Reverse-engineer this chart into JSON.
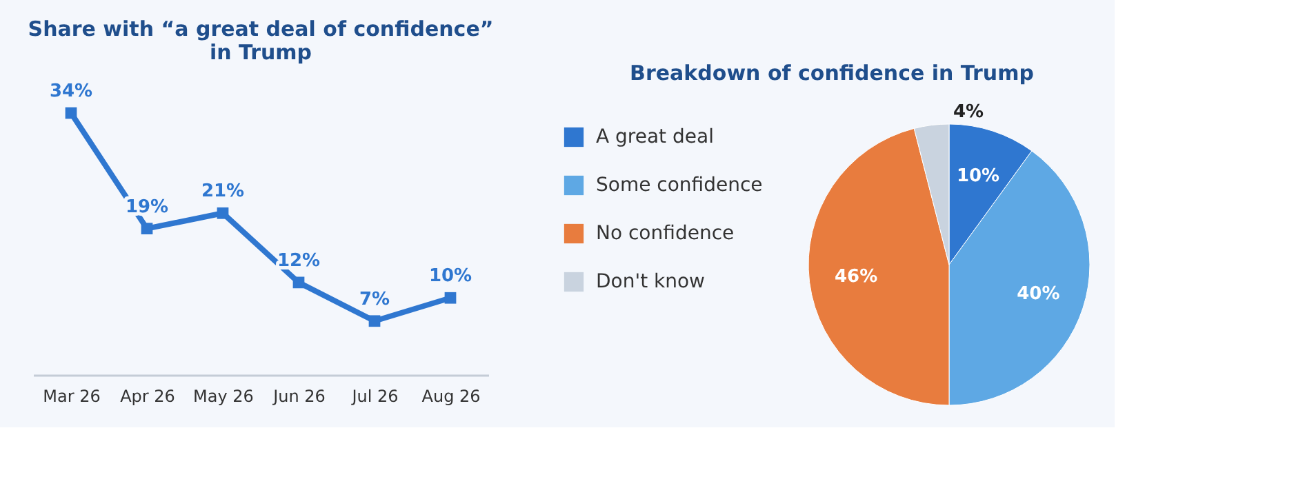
{
  "chart_data": [
    {
      "type": "line",
      "title": "Share with “a great deal of confidence”\nin Trump",
      "categories": [
        "Mar 26",
        "Apr 26",
        "May 26",
        "Jun 26",
        "Jul 26",
        "Aug 26"
      ],
      "series": [
        {
          "color": "#2f77d0",
          "values": [
            34,
            19,
            21,
            12,
            7,
            10
          ],
          "value_labels": [
            "34%",
            "19%",
            "21%",
            "12%",
            "7%",
            "10%"
          ]
        }
      ],
      "marker": "square",
      "line_style": "solid",
      "grid": false,
      "tick_labels": "x"
    },
    {
      "type": "pie",
      "title": "Breakdown of confidence in Trump",
      "categories": [
        "A great deal",
        "Some confidence",
        "No confidence",
        "Don't know"
      ],
      "values": [
        10,
        40,
        46,
        4
      ],
      "colors": [
        "#2f77d0",
        "#5ea8e4",
        "#e87c3e",
        "#c9d3df"
      ],
      "value_labels": [
        "10%",
        "40%",
        "46%",
        "4%"
      ],
      "legend": "left"
    }
  ]
}
